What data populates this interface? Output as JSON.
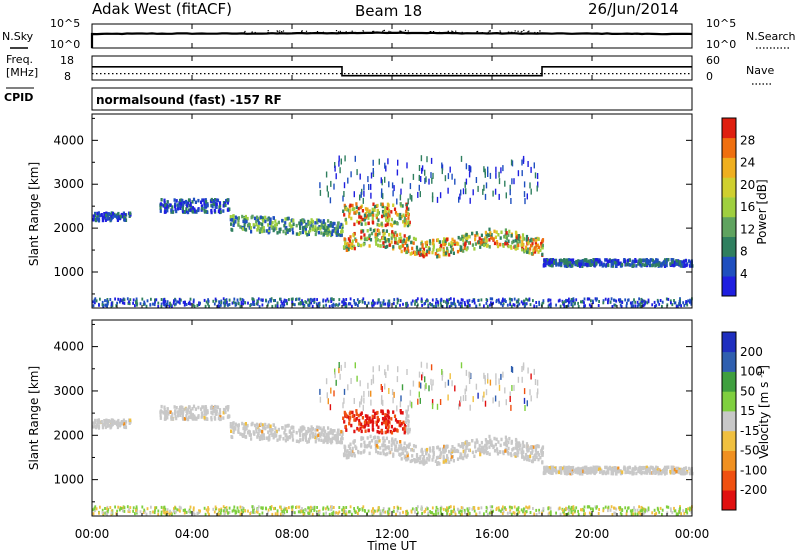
{
  "header": {
    "radar": "Adak West (fitACF)",
    "beam": "Beam 18",
    "date": "26/Jun/2014"
  },
  "side_labels": {
    "nsky": "N.Sky",
    "freq_line1": "Freq.",
    "freq_line2": "[MHz]",
    "cpid": "CPID",
    "nsearch": "N.Search",
    "nave": "Nave"
  },
  "cpid_text": "normalsound (fast) -157 RF",
  "colors": {
    "power": [
      "#1f1fe0",
      "#1f4fbf",
      "#2f7f5f",
      "#5fa35f",
      "#9fcf3f",
      "#cfcf2f",
      "#efaf1f",
      "#ef6f0f",
      "#df1f0f"
    ],
    "velocity": [
      "#e01010",
      "#f05010",
      "#f09020",
      "#f0c040",
      "#c8c8c8",
      "#7fcf3f",
      "#3f9f3f",
      "#2f5faf",
      "#1f2fbf"
    ]
  },
  "chart_data": [
    {
      "type": "line",
      "panel": "noise",
      "ylabel_left": "N.Sky",
      "ylabel_right": "N.Search",
      "y_ticks": [
        "10^0",
        "10^5"
      ],
      "x_range": [
        "00:00",
        "24:00"
      ],
      "series": [
        {
          "name": "N.Sky",
          "x": [
            "00:00",
            "02:00",
            "04:00",
            "06:00",
            "08:00",
            "10:00",
            "12:00",
            "14:00",
            "16:00",
            "18:00",
            "20:00",
            "22:00",
            "24:00"
          ],
          "values": [
            2.9,
            3.0,
            3.0,
            3.0,
            3.05,
            3.1,
            3.2,
            3.1,
            3.05,
            3.0,
            3.0,
            2.95,
            2.9
          ]
        }
      ]
    },
    {
      "type": "line",
      "panel": "frequency",
      "ylabel_left": "Freq. [MHz]",
      "ylabel_right": "Nave",
      "left_ticks": [
        8,
        18
      ],
      "right_ticks": [
        0,
        60
      ],
      "series": [
        {
          "name": "Freq.",
          "x": [
            "00:00",
            "10:00",
            "10:00",
            "18:00",
            "18:00",
            "24:00"
          ],
          "values": [
            13.5,
            13.5,
            9.8,
            9.8,
            13.5,
            13.5
          ]
        },
        {
          "name": "Nave",
          "x": [
            "00:00",
            "24:00"
          ],
          "values": [
            16,
            16
          ]
        }
      ]
    },
    {
      "type": "heatmap",
      "panel": "power",
      "ylabel": "Slant Range [km]",
      "y_ticks": [
        1000,
        2000,
        3000,
        4000
      ],
      "ylim": [
        180,
        4600
      ],
      "colorbar_label": "Power [dB]",
      "colorbar_ticks": [
        4,
        8,
        12,
        16,
        20,
        24,
        28
      ],
      "scatter_bands": [
        {
          "t_start": "00:00",
          "t_end": "01:30",
          "range": 2250,
          "width": 180,
          "level": "low"
        },
        {
          "t_start": "02:40",
          "t_end": "05:30",
          "range": 2500,
          "width": 300,
          "level": "low"
        },
        {
          "t_start": "05:30",
          "t_end": "10:00",
          "range": 2050,
          "width": 350,
          "level": "mid"
        },
        {
          "t_start": "10:00",
          "t_end": "12:40",
          "range": 2300,
          "width": 500,
          "level": "high"
        },
        {
          "t_start": "10:00",
          "t_end": "18:00",
          "range": 1650,
          "width": 400,
          "level": "high"
        },
        {
          "t_start": "18:00",
          "t_end": "24:00",
          "range": 1200,
          "width": 150,
          "level": "low"
        }
      ]
    },
    {
      "type": "heatmap",
      "panel": "velocity",
      "ylabel": "Slant Range [km]",
      "y_ticks": [
        1000,
        2000,
        3000,
        4000
      ],
      "ylim": [
        180,
        4600
      ],
      "colorbar_label": "Velocity [m s^-1]",
      "colorbar_ticks": [
        -200,
        -100,
        -50,
        -15,
        15,
        50,
        100,
        200
      ],
      "xlabel": "Time UT",
      "x_ticks": [
        "00:00",
        "04:00",
        "08:00",
        "12:00",
        "16:00",
        "20:00",
        "00:00"
      ]
    }
  ]
}
